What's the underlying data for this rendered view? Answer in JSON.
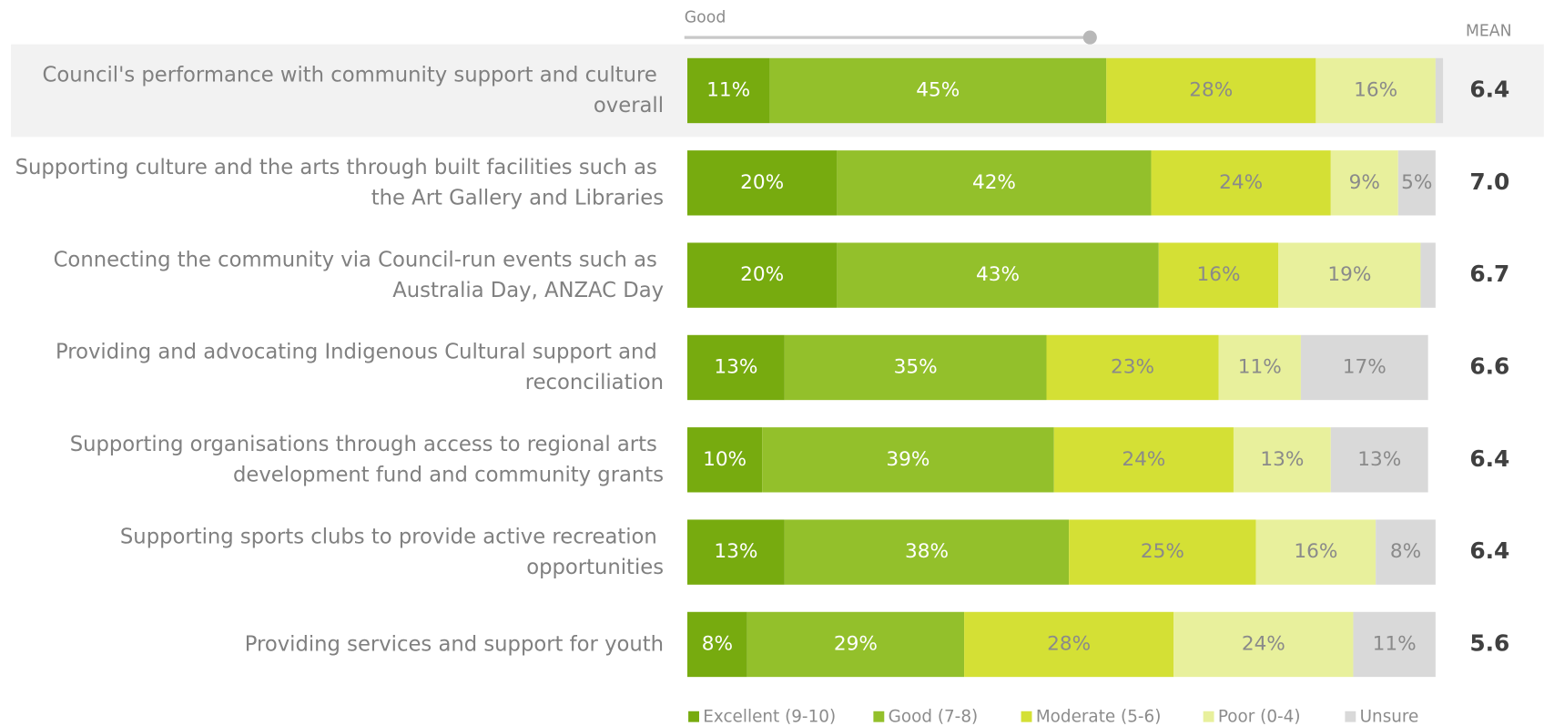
{
  "chart_data": {
    "type": "stacked_bar_horizontal",
    "scale_label": "Good",
    "mean_header": "MEAN",
    "categories": [
      "Council's performance with community support and culture overall",
      "Supporting culture and the arts through built facilities such as the Art Gallery and Libraries",
      "Connecting the community via Council-run events such as Australia Day, ANZAC Day",
      "Providing and advocating Indigenous Cultural support and reconciliation",
      "Supporting organisations through access to regional arts development fund and community grants",
      "Supporting sports clubs to provide active recreation opportunities",
      "Providing services and support for youth"
    ],
    "xlim": [
      0,
      100
    ],
    "series": [
      {
        "name": "Excellent (9-10)",
        "color": "#77ab0f",
        "label_color": "#ffffff",
        "values": [
          11,
          20,
          20,
          13,
          10,
          13,
          8
        ],
        "value_labels": [
          "11%",
          "20%",
          "20%",
          "13%",
          "10%",
          "13%",
          "8%"
        ]
      },
      {
        "name": "Good (7-8)",
        "color": "#93c02b",
        "label_color": "#ffffff",
        "values": [
          45,
          42,
          43,
          35,
          39,
          38,
          29
        ],
        "value_labels": [
          "45%",
          "42%",
          "43%",
          "35%",
          "39%",
          "38%",
          "29%"
        ]
      },
      {
        "name": "Moderate (5-6)",
        "color": "#d4e035",
        "label_color": "#8a8a8a",
        "values": [
          28,
          24,
          16,
          23,
          24,
          25,
          28
        ],
        "value_labels": [
          "28%",
          "24%",
          "16%",
          "23%",
          "24%",
          "25%",
          "28%"
        ]
      },
      {
        "name": "Poor (0-4)",
        "color": "#e8f09c",
        "label_color": "#8a8a8a",
        "values": [
          16,
          9,
          19,
          11,
          13,
          16,
          24
        ],
        "value_labels": [
          "16%",
          "9%",
          "19%",
          "11%",
          "13%",
          "16%",
          "24%"
        ]
      },
      {
        "name": "Unsure",
        "color": "#d9d9d9",
        "label_color": "#8a8a8a",
        "values": [
          1,
          5,
          2,
          17,
          13,
          8,
          11
        ],
        "value_labels": [
          null,
          "5%",
          null,
          "17%",
          "13%",
          "8%",
          "11%"
        ]
      }
    ],
    "means": [
      6.4,
      7,
      6.7,
      6.6,
      6.4,
      6.4,
      5.6
    ],
    "mean_labels": [
      "6.4",
      "7.0",
      "6.7",
      "6.6",
      "6.4",
      "6.4",
      "5.6"
    ]
  }
}
